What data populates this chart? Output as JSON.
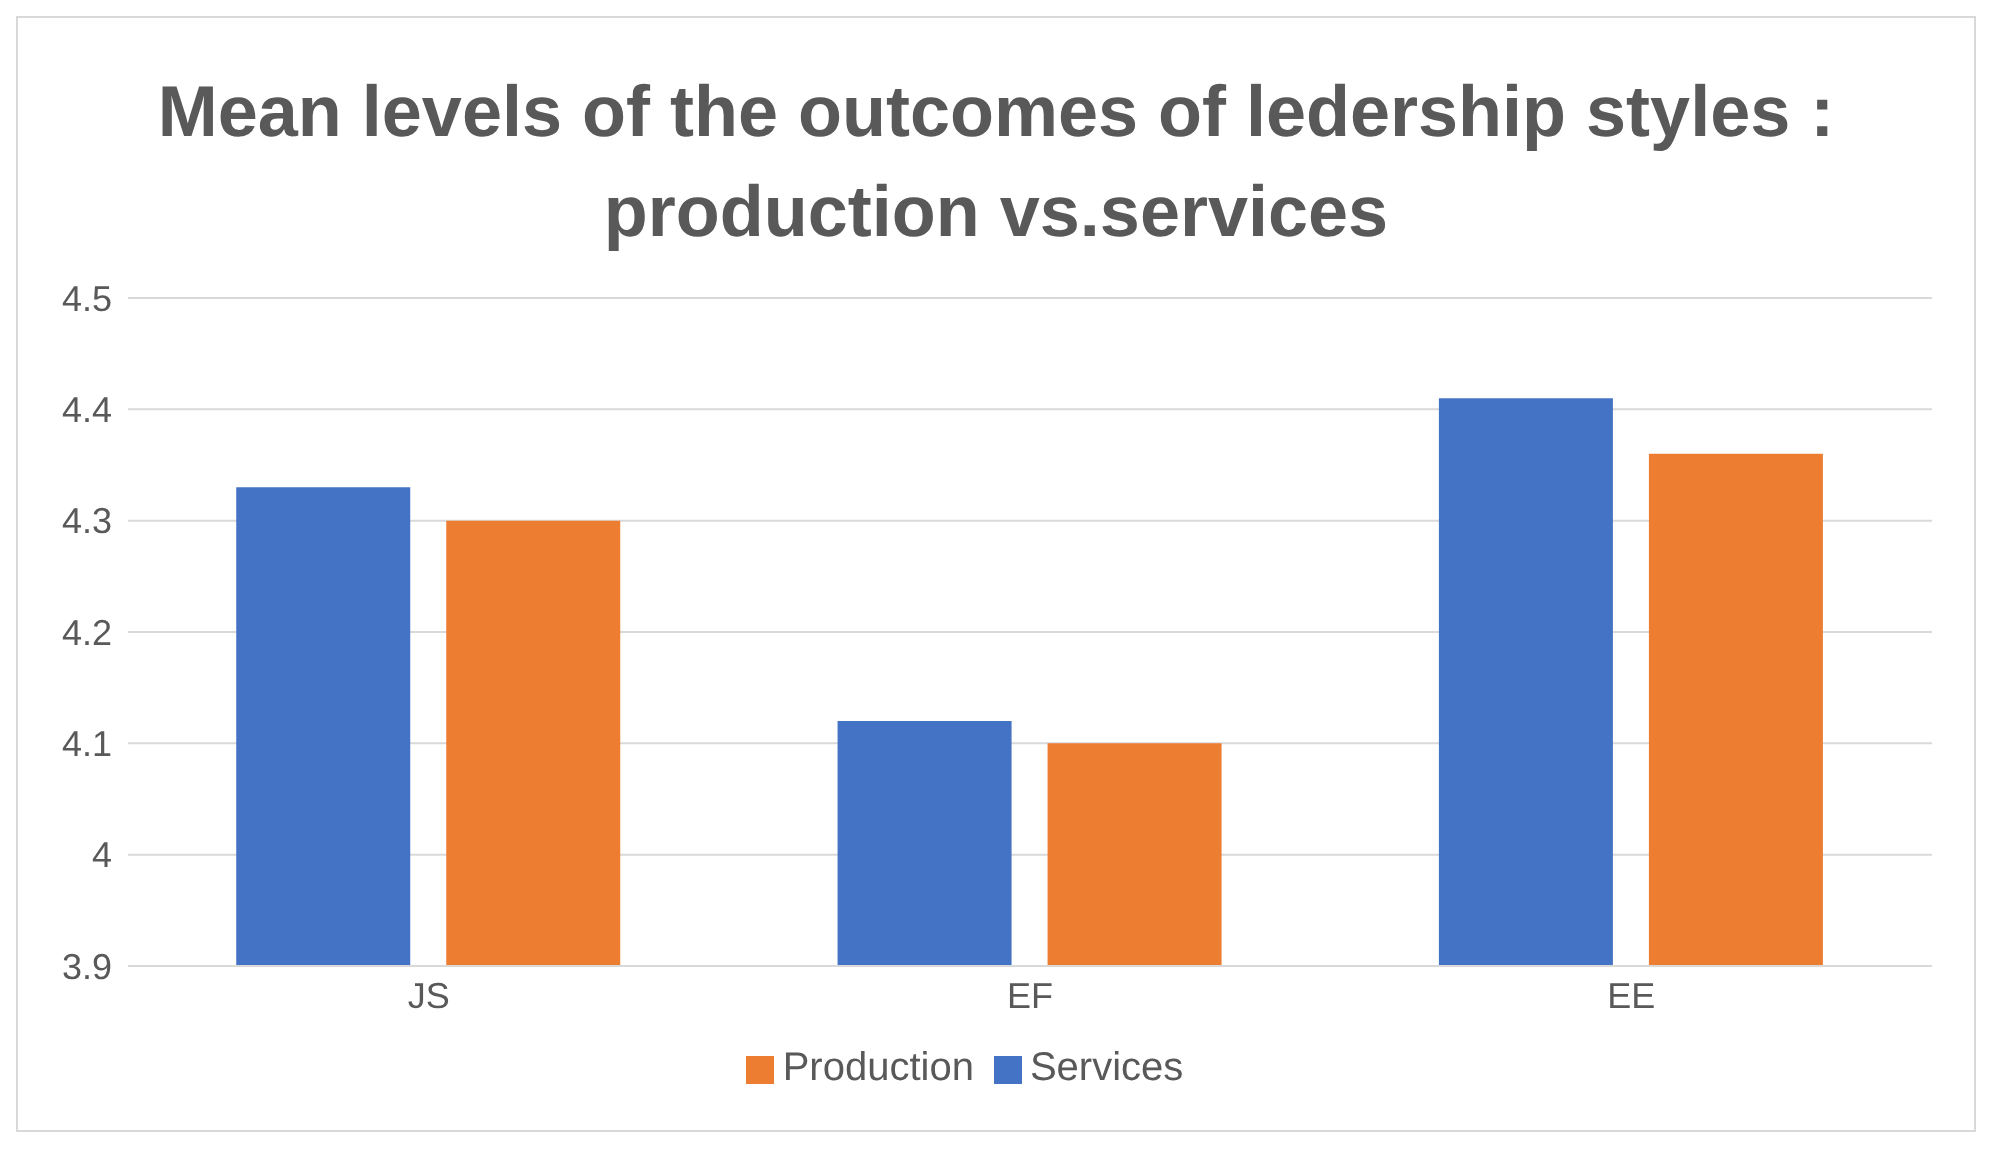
{
  "chart_data": {
    "type": "bar",
    "title": "Mean levels of the outcomes of ledership styles : production vs.services",
    "categories": [
      "JS",
      "EF",
      "EE"
    ],
    "series": [
      {
        "name": "Services",
        "color": "#4472c4",
        "values": [
          4.33,
          4.12,
          4.41
        ]
      },
      {
        "name": "Production",
        "color": "#ed7d31",
        "values": [
          4.3,
          4.1,
          4.36
        ]
      }
    ],
    "ylim": [
      3.9,
      4.5
    ],
    "yticks": [
      3.9,
      4,
      4.1,
      4.2,
      4.3,
      4.4,
      4.5
    ],
    "grid": "y",
    "legend": "bottom"
  }
}
